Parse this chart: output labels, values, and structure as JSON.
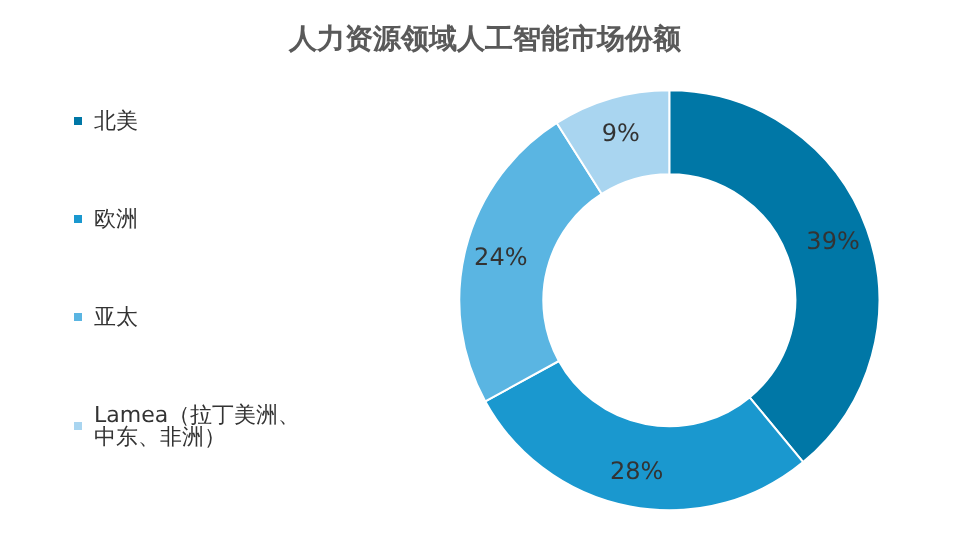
{
  "chart_data": {
    "type": "donut",
    "title": "人力资源领域人工智能市场份额",
    "categories": [
      "北美",
      "欧洲",
      "亚太",
      "Lamea（拉丁美洲、中东、非洲）"
    ],
    "values": [
      39,
      28,
      24,
      9
    ],
    "value_labels": [
      "39%",
      "28%",
      "24%",
      "9%"
    ],
    "colors": [
      "#0077a6",
      "#1a98cf",
      "#5ab5e2",
      "#a9d5f0"
    ],
    "legend": "left"
  }
}
